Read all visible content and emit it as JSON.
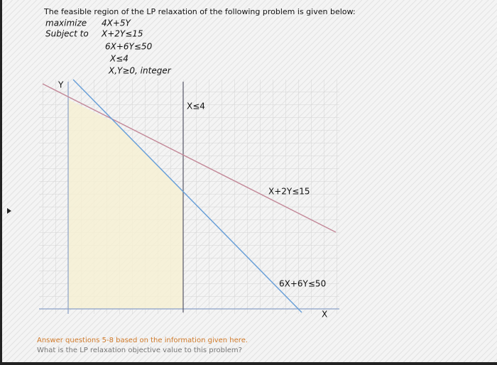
{
  "intro": "The feasible region of the LP relaxation of the following problem is given below:",
  "problem": {
    "objective_label": "maximize",
    "objective": "4X+5Y",
    "constraints_label": "Subject to",
    "constraints": [
      "X+2Y≤15",
      "6X+6Y≤50",
      "X≤4",
      "X,Y≥0, integer"
    ]
  },
  "graph": {
    "y_axis_label": "Y",
    "x_axis_label": "X",
    "line_labels": [
      "X≤4",
      "X+2Y≤15",
      "6X+6Y≤50"
    ]
  },
  "footer": {
    "heading": "Answer questions 5-8 based on the information given here.",
    "question": "What is the LP relaxation objective value to this problem?"
  }
}
